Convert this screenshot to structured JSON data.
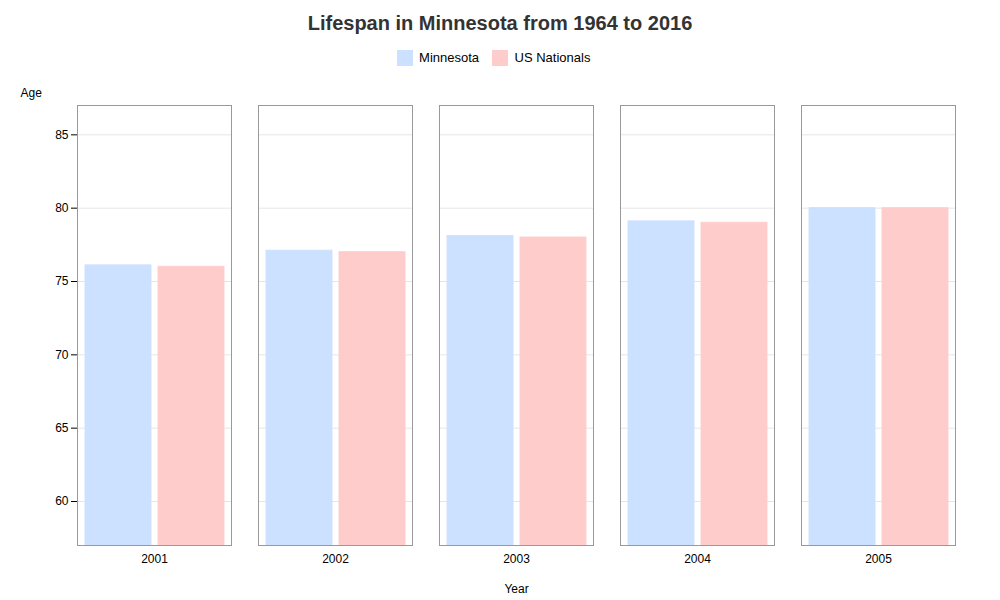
{
  "chart_data": {
    "type": "bar",
    "title": "Lifespan in Minnesota from 1964 to 2016",
    "xlabel": "Year",
    "ylabel": "Age",
    "categories": [
      "2001",
      "2002",
      "2003",
      "2004",
      "2005"
    ],
    "series": [
      {
        "name": "Minnesota",
        "color": "#cce0ff",
        "values": [
          76.1,
          77.1,
          78.1,
          79.1,
          80.0
        ]
      },
      {
        "name": "US Nationals",
        "color": "#ffcccc",
        "values": [
          76.0,
          77.0,
          78.0,
          79.0,
          80.0
        ]
      }
    ],
    "ylim": [
      57,
      87
    ],
    "yticks": [
      60,
      65,
      70,
      75,
      80,
      85
    ],
    "grid": true,
    "legend": "top"
  }
}
